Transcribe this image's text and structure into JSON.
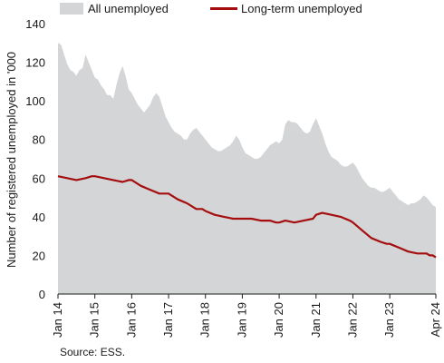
{
  "colors": {
    "area": "#d4d5d7",
    "line": "#a50e0e",
    "axis": "#1a1a1a"
  },
  "chart_data": {
    "type": "area",
    "ylabel": "Number of registered unemployed in '000",
    "source": "Source: ESS.",
    "ylim": [
      0,
      140
    ],
    "y_ticks": [
      0,
      20,
      40,
      60,
      80,
      100,
      120,
      140
    ],
    "x_ticks": [
      "Jan 14",
      "Jan 15",
      "Jan 16",
      "Jan 17",
      "Jan 18",
      "Jan 19",
      "Jan 20",
      "Jan 21",
      "Jan 22",
      "Jan 23",
      "Apr 24"
    ],
    "x_start": "2014-01",
    "x_end": "2024-04",
    "grid": false,
    "legend_position": "top",
    "series": [
      {
        "name": "All unemployed",
        "style": "area",
        "points": [
          [
            "2014-01",
            130
          ],
          [
            "2014-02",
            129
          ],
          [
            "2014-03",
            124
          ],
          [
            "2014-04",
            119
          ],
          [
            "2014-05",
            116
          ],
          [
            "2014-06",
            115
          ],
          [
            "2014-07",
            113
          ],
          [
            "2014-08",
            116
          ],
          [
            "2014-09",
            117
          ],
          [
            "2014-10",
            124
          ],
          [
            "2014-11",
            120
          ],
          [
            "2014-12",
            116
          ],
          [
            "2015-01",
            112
          ],
          [
            "2015-02",
            111
          ],
          [
            "2015-03",
            108
          ],
          [
            "2015-04",
            106
          ],
          [
            "2015-05",
            103
          ],
          [
            "2015-06",
            103
          ],
          [
            "2015-07",
            101
          ],
          [
            "2015-08",
            108
          ],
          [
            "2015-09",
            114
          ],
          [
            "2015-10",
            118
          ],
          [
            "2015-11",
            113
          ],
          [
            "2015-12",
            106
          ],
          [
            "2016-01",
            104
          ],
          [
            "2016-02",
            101
          ],
          [
            "2016-03",
            98
          ],
          [
            "2016-04",
            96
          ],
          [
            "2016-05",
            94
          ],
          [
            "2016-06",
            96
          ],
          [
            "2016-07",
            98
          ],
          [
            "2016-08",
            102
          ],
          [
            "2016-09",
            104
          ],
          [
            "2016-10",
            102
          ],
          [
            "2016-11",
            97
          ],
          [
            "2016-12",
            92
          ],
          [
            "2017-01",
            89
          ],
          [
            "2017-02",
            86
          ],
          [
            "2017-03",
            84
          ],
          [
            "2017-04",
            83
          ],
          [
            "2017-05",
            82
          ],
          [
            "2017-06",
            80
          ],
          [
            "2017-07",
            80
          ],
          [
            "2017-08",
            83
          ],
          [
            "2017-09",
            85
          ],
          [
            "2017-10",
            86
          ],
          [
            "2017-11",
            84
          ],
          [
            "2017-12",
            82
          ],
          [
            "2018-01",
            80
          ],
          [
            "2018-02",
            78
          ],
          [
            "2018-03",
            76
          ],
          [
            "2018-04",
            75
          ],
          [
            "2018-05",
            74
          ],
          [
            "2018-06",
            74
          ],
          [
            "2018-07",
            75
          ],
          [
            "2018-08",
            76
          ],
          [
            "2018-09",
            77
          ],
          [
            "2018-10",
            79
          ],
          [
            "2018-11",
            82
          ],
          [
            "2018-12",
            80
          ],
          [
            "2019-01",
            76
          ],
          [
            "2019-02",
            73
          ],
          [
            "2019-03",
            72
          ],
          [
            "2019-04",
            71
          ],
          [
            "2019-05",
            70
          ],
          [
            "2019-06",
            70
          ],
          [
            "2019-07",
            71
          ],
          [
            "2019-08",
            73
          ],
          [
            "2019-09",
            75
          ],
          [
            "2019-10",
            77
          ],
          [
            "2019-11",
            78
          ],
          [
            "2019-12",
            79
          ],
          [
            "2020-01",
            78
          ],
          [
            "2020-02",
            80
          ],
          [
            "2020-03",
            88
          ],
          [
            "2020-04",
            90
          ],
          [
            "2020-05",
            89
          ],
          [
            "2020-06",
            89
          ],
          [
            "2020-07",
            88
          ],
          [
            "2020-08",
            86
          ],
          [
            "2020-09",
            84
          ],
          [
            "2020-10",
            83
          ],
          [
            "2020-11",
            84
          ],
          [
            "2020-12",
            88
          ],
          [
            "2021-01",
            91
          ],
          [
            "2021-02",
            87
          ],
          [
            "2021-03",
            83
          ],
          [
            "2021-04",
            78
          ],
          [
            "2021-05",
            74
          ],
          [
            "2021-06",
            71
          ],
          [
            "2021-07",
            70
          ],
          [
            "2021-08",
            69
          ],
          [
            "2021-09",
            67
          ],
          [
            "2021-10",
            66
          ],
          [
            "2021-11",
            66
          ],
          [
            "2021-12",
            67
          ],
          [
            "2022-01",
            68
          ],
          [
            "2022-02",
            66
          ],
          [
            "2022-03",
            63
          ],
          [
            "2022-04",
            60
          ],
          [
            "2022-05",
            58
          ],
          [
            "2022-06",
            56
          ],
          [
            "2022-07",
            55
          ],
          [
            "2022-08",
            55
          ],
          [
            "2022-09",
            54
          ],
          [
            "2022-10",
            53
          ],
          [
            "2022-11",
            53
          ],
          [
            "2022-12",
            54
          ],
          [
            "2023-01",
            55
          ],
          [
            "2023-02",
            53
          ],
          [
            "2023-03",
            51
          ],
          [
            "2023-04",
            49
          ],
          [
            "2023-05",
            48
          ],
          [
            "2023-06",
            47
          ],
          [
            "2023-07",
            46
          ],
          [
            "2023-08",
            47
          ],
          [
            "2023-09",
            47
          ],
          [
            "2023-10",
            48
          ],
          [
            "2023-11",
            49
          ],
          [
            "2023-12",
            51
          ],
          [
            "2024-01",
            50
          ],
          [
            "2024-02",
            48
          ],
          [
            "2024-03",
            46
          ],
          [
            "2024-04",
            45
          ]
        ]
      },
      {
        "name": "Long-term unemployed",
        "style": "line",
        "points": [
          [
            "2014-01",
            61
          ],
          [
            "2014-04",
            60
          ],
          [
            "2014-07",
            59
          ],
          [
            "2014-10",
            60
          ],
          [
            "2014-12",
            61
          ],
          [
            "2015-01",
            61
          ],
          [
            "2015-04",
            60
          ],
          [
            "2015-07",
            59
          ],
          [
            "2015-10",
            58
          ],
          [
            "2015-12",
            59
          ],
          [
            "2016-01",
            59
          ],
          [
            "2016-04",
            56
          ],
          [
            "2016-07",
            54
          ],
          [
            "2016-10",
            52
          ],
          [
            "2016-12",
            52
          ],
          [
            "2017-01",
            52
          ],
          [
            "2017-04",
            49
          ],
          [
            "2017-07",
            47
          ],
          [
            "2017-10",
            44
          ],
          [
            "2017-12",
            44
          ],
          [
            "2018-01",
            43
          ],
          [
            "2018-04",
            41
          ],
          [
            "2018-07",
            40
          ],
          [
            "2018-10",
            39
          ],
          [
            "2018-12",
            39
          ],
          [
            "2019-01",
            39
          ],
          [
            "2019-04",
            39
          ],
          [
            "2019-07",
            38
          ],
          [
            "2019-10",
            38
          ],
          [
            "2019-12",
            37
          ],
          [
            "2020-01",
            37
          ],
          [
            "2020-03",
            38
          ],
          [
            "2020-06",
            37
          ],
          [
            "2020-09",
            38
          ],
          [
            "2020-12",
            39
          ],
          [
            "2021-01",
            41
          ],
          [
            "2021-03",
            42
          ],
          [
            "2021-06",
            41
          ],
          [
            "2021-09",
            40
          ],
          [
            "2021-12",
            38
          ],
          [
            "2022-01",
            37
          ],
          [
            "2022-04",
            33
          ],
          [
            "2022-07",
            29
          ],
          [
            "2022-10",
            27
          ],
          [
            "2022-12",
            26
          ],
          [
            "2023-01",
            26
          ],
          [
            "2023-04",
            24
          ],
          [
            "2023-07",
            22
          ],
          [
            "2023-10",
            21
          ],
          [
            "2023-12",
            21
          ],
          [
            "2024-01",
            21
          ],
          [
            "2024-02",
            20
          ],
          [
            "2024-03",
            20
          ],
          [
            "2024-04",
            19
          ]
        ]
      }
    ]
  }
}
